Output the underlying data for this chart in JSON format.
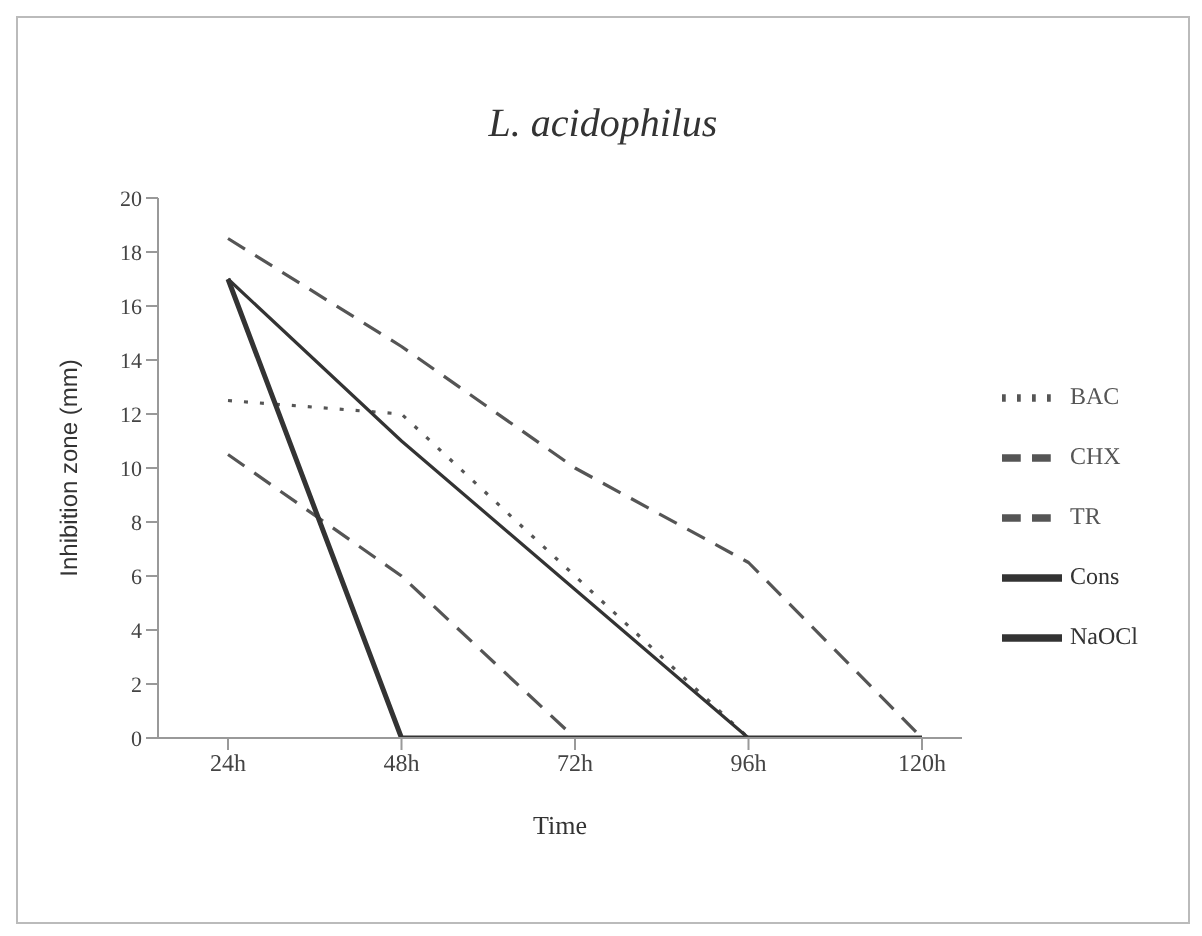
{
  "chart_data": {
    "type": "line",
    "title": "L. acidophilus",
    "xlabel": "Time",
    "ylabel": "Inhibition zone (mm)",
    "categories": [
      "24h",
      "48h",
      "72h",
      "96h",
      "120h"
    ],
    "series": [
      {
        "name": "BAC",
        "color": "#555555",
        "line_style": "dotted",
        "values": [
          12.5,
          12,
          6,
          0,
          0
        ]
      },
      {
        "name": "CHX",
        "color": "#555555",
        "line_style": "dashed",
        "values": [
          18.5,
          14.5,
          10,
          6.5,
          0
        ]
      },
      {
        "name": "TR",
        "color": "#555555",
        "line_style": "dashed",
        "values": [
          10.5,
          6,
          0,
          0,
          0
        ]
      },
      {
        "name": "Cons",
        "color": "#333333",
        "line_style": "solid",
        "values": [
          17,
          11,
          5.5,
          0,
          0
        ]
      },
      {
        "name": "NaOCl",
        "color": "#333333",
        "line_style": "solid",
        "values": [
          17,
          0,
          0,
          0,
          0
        ]
      }
    ],
    "ylim": [
      0,
      20
    ],
    "yticks": [
      0,
      2,
      4,
      6,
      8,
      10,
      12,
      14,
      16,
      18,
      20
    ],
    "grid": false,
    "legend": "right",
    "marker": "none"
  }
}
